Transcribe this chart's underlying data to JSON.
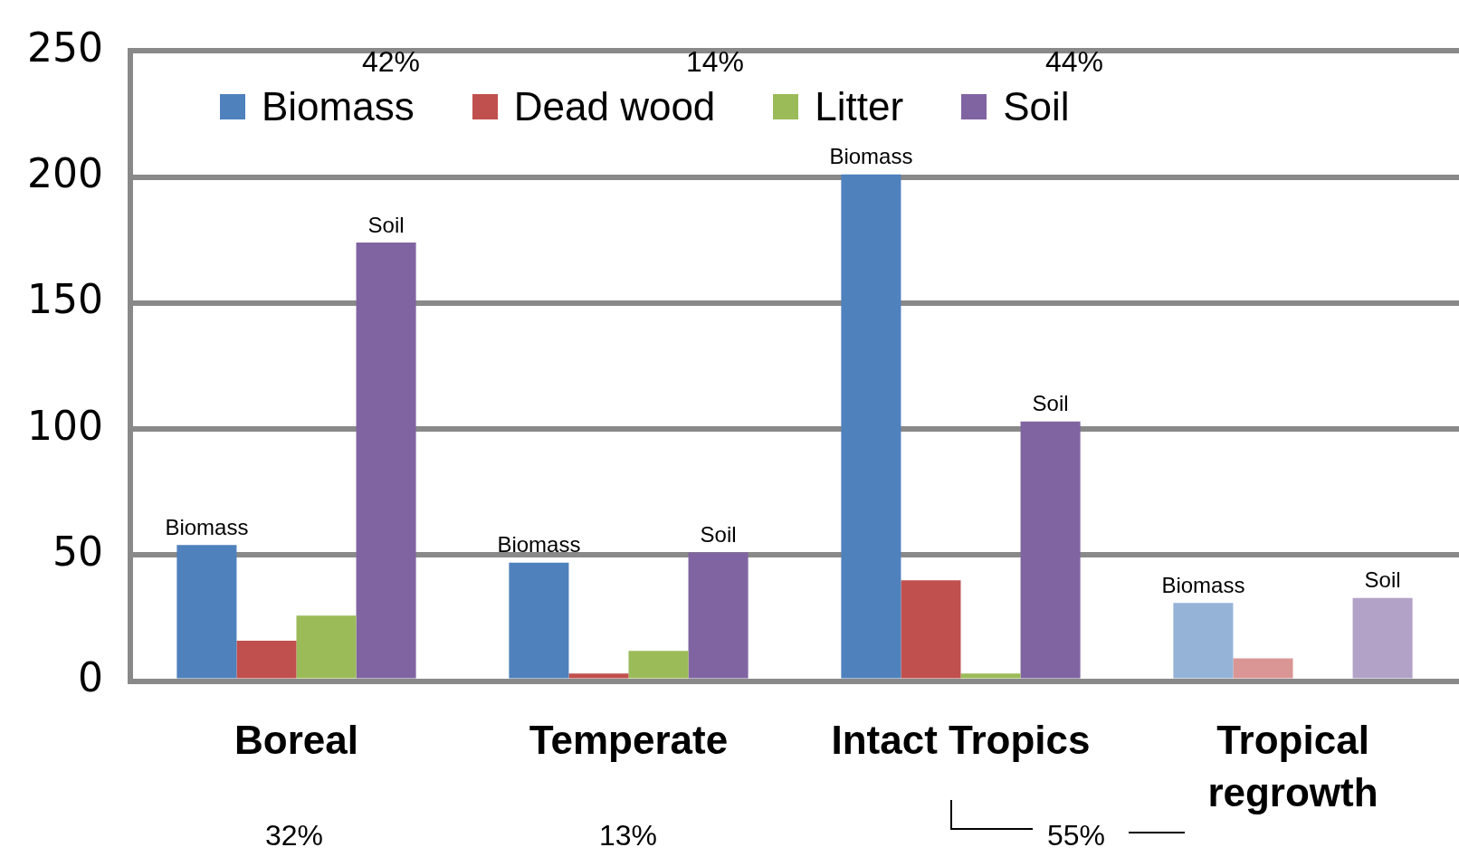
{
  "chart_data": {
    "type": "bar",
    "categories": [
      "Boreal",
      "Temperate",
      "Intact Tropics",
      "Tropical regrowth"
    ],
    "series": [
      {
        "name": "Biomass",
        "color": "#4f81bd",
        "colors": [
          "#4f81bd",
          "#4f81bd",
          "#4f81bd",
          "#95b3d7"
        ],
        "values": [
          54,
          47,
          201,
          31
        ],
        "value_labels": [
          "Biomass",
          "Biomass",
          "Biomass",
          "Biomass"
        ]
      },
      {
        "name": "Dead wood",
        "color": "#c0504d",
        "colors": [
          "#c0504d",
          "#c0504d",
          "#c0504d",
          "#d99694"
        ],
        "values": [
          16,
          3,
          40,
          9
        ]
      },
      {
        "name": "Litter",
        "color": "#9bbb59",
        "colors": [
          "#9bbb59",
          "#9bbb59",
          "#9bbb59",
          "#c3d69b"
        ],
        "values": [
          26,
          12,
          3,
          null
        ]
      },
      {
        "name": "Soil",
        "color": "#8064a2",
        "colors": [
          "#8064a2",
          "#8064a2",
          "#8064a2",
          "#b3a2c7"
        ],
        "values": [
          174,
          51,
          103,
          33
        ],
        "value_labels": [
          "Soil",
          "Soil",
          "Soil",
          "Soil"
        ]
      }
    ],
    "ylim": [
      0,
      250
    ],
    "yticks": [
      0,
      50,
      100,
      150,
      200,
      250
    ],
    "grid": "y",
    "legend": "top",
    "annotations": [
      "42%",
      "14%",
      "44%",
      "32%",
      "13%",
      "55%"
    ]
  }
}
